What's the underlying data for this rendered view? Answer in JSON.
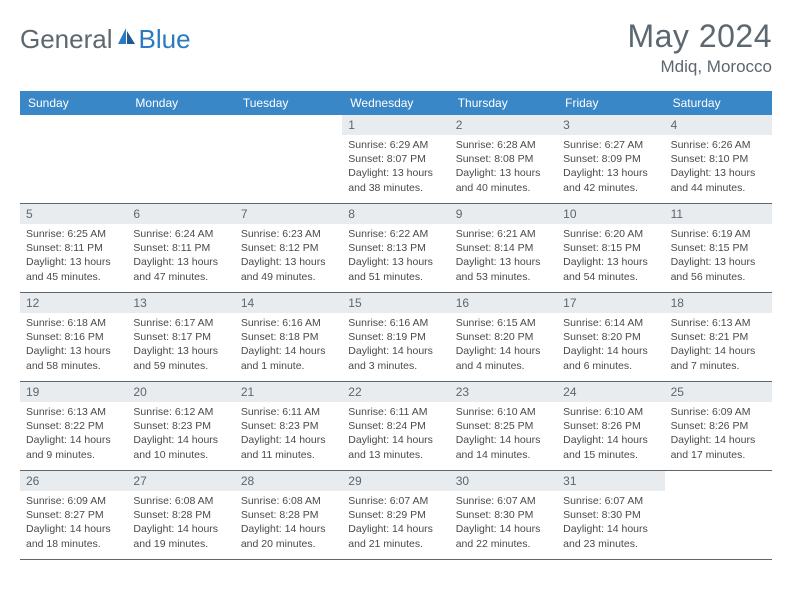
{
  "logo": {
    "text1": "General",
    "text2": "Blue"
  },
  "header": {
    "title": "May 2024",
    "location": "Mdiq, Morocco"
  },
  "colors": {
    "header_bg": "#3a87c8",
    "header_text": "#ffffff",
    "daynum_bg": "#e8ecef",
    "text_muted": "#5c6770",
    "body_text": "#4a4a4a",
    "row_border": "#5c6770",
    "logo_gray": "#5c6770",
    "logo_blue": "#2a7bbf"
  },
  "dayNames": [
    "Sunday",
    "Monday",
    "Tuesday",
    "Wednesday",
    "Thursday",
    "Friday",
    "Saturday"
  ],
  "weeks": [
    [
      null,
      null,
      null,
      {
        "n": "1",
        "sr": "6:29 AM",
        "ss": "8:07 PM",
        "dl": "13 hours and 38 minutes."
      },
      {
        "n": "2",
        "sr": "6:28 AM",
        "ss": "8:08 PM",
        "dl": "13 hours and 40 minutes."
      },
      {
        "n": "3",
        "sr": "6:27 AM",
        "ss": "8:09 PM",
        "dl": "13 hours and 42 minutes."
      },
      {
        "n": "4",
        "sr": "6:26 AM",
        "ss": "8:10 PM",
        "dl": "13 hours and 44 minutes."
      }
    ],
    [
      {
        "n": "5",
        "sr": "6:25 AM",
        "ss": "8:11 PM",
        "dl": "13 hours and 45 minutes."
      },
      {
        "n": "6",
        "sr": "6:24 AM",
        "ss": "8:11 PM",
        "dl": "13 hours and 47 minutes."
      },
      {
        "n": "7",
        "sr": "6:23 AM",
        "ss": "8:12 PM",
        "dl": "13 hours and 49 minutes."
      },
      {
        "n": "8",
        "sr": "6:22 AM",
        "ss": "8:13 PM",
        "dl": "13 hours and 51 minutes."
      },
      {
        "n": "9",
        "sr": "6:21 AM",
        "ss": "8:14 PM",
        "dl": "13 hours and 53 minutes."
      },
      {
        "n": "10",
        "sr": "6:20 AM",
        "ss": "8:15 PM",
        "dl": "13 hours and 54 minutes."
      },
      {
        "n": "11",
        "sr": "6:19 AM",
        "ss": "8:15 PM",
        "dl": "13 hours and 56 minutes."
      }
    ],
    [
      {
        "n": "12",
        "sr": "6:18 AM",
        "ss": "8:16 PM",
        "dl": "13 hours and 58 minutes."
      },
      {
        "n": "13",
        "sr": "6:17 AM",
        "ss": "8:17 PM",
        "dl": "13 hours and 59 minutes."
      },
      {
        "n": "14",
        "sr": "6:16 AM",
        "ss": "8:18 PM",
        "dl": "14 hours and 1 minute."
      },
      {
        "n": "15",
        "sr": "6:16 AM",
        "ss": "8:19 PM",
        "dl": "14 hours and 3 minutes."
      },
      {
        "n": "16",
        "sr": "6:15 AM",
        "ss": "8:20 PM",
        "dl": "14 hours and 4 minutes."
      },
      {
        "n": "17",
        "sr": "6:14 AM",
        "ss": "8:20 PM",
        "dl": "14 hours and 6 minutes."
      },
      {
        "n": "18",
        "sr": "6:13 AM",
        "ss": "8:21 PM",
        "dl": "14 hours and 7 minutes."
      }
    ],
    [
      {
        "n": "19",
        "sr": "6:13 AM",
        "ss": "8:22 PM",
        "dl": "14 hours and 9 minutes."
      },
      {
        "n": "20",
        "sr": "6:12 AM",
        "ss": "8:23 PM",
        "dl": "14 hours and 10 minutes."
      },
      {
        "n": "21",
        "sr": "6:11 AM",
        "ss": "8:23 PM",
        "dl": "14 hours and 11 minutes."
      },
      {
        "n": "22",
        "sr": "6:11 AM",
        "ss": "8:24 PM",
        "dl": "14 hours and 13 minutes."
      },
      {
        "n": "23",
        "sr": "6:10 AM",
        "ss": "8:25 PM",
        "dl": "14 hours and 14 minutes."
      },
      {
        "n": "24",
        "sr": "6:10 AM",
        "ss": "8:26 PM",
        "dl": "14 hours and 15 minutes."
      },
      {
        "n": "25",
        "sr": "6:09 AM",
        "ss": "8:26 PM",
        "dl": "14 hours and 17 minutes."
      }
    ],
    [
      {
        "n": "26",
        "sr": "6:09 AM",
        "ss": "8:27 PM",
        "dl": "14 hours and 18 minutes."
      },
      {
        "n": "27",
        "sr": "6:08 AM",
        "ss": "8:28 PM",
        "dl": "14 hours and 19 minutes."
      },
      {
        "n": "28",
        "sr": "6:08 AM",
        "ss": "8:28 PM",
        "dl": "14 hours and 20 minutes."
      },
      {
        "n": "29",
        "sr": "6:07 AM",
        "ss": "8:29 PM",
        "dl": "14 hours and 21 minutes."
      },
      {
        "n": "30",
        "sr": "6:07 AM",
        "ss": "8:30 PM",
        "dl": "14 hours and 22 minutes."
      },
      {
        "n": "31",
        "sr": "6:07 AM",
        "ss": "8:30 PM",
        "dl": "14 hours and 23 minutes."
      },
      null
    ]
  ],
  "labels": {
    "sunrise": "Sunrise: ",
    "sunset": "Sunset: ",
    "daylight": "Daylight: "
  }
}
